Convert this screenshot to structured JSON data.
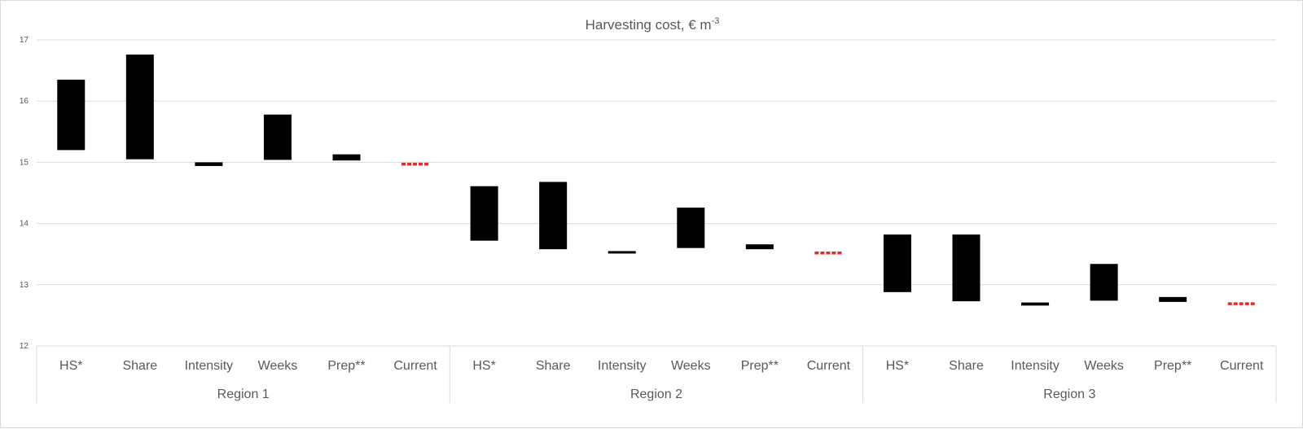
{
  "chart_data": {
    "type": "bar",
    "subtype": "floating-range",
    "title": "Harvesting cost, € m",
    "title_superscript": "-3",
    "ylim": [
      12,
      17
    ],
    "yticks": [
      "12",
      "13",
      "14",
      "15",
      "16",
      "17"
    ],
    "grid": true,
    "legend": "none",
    "colors": {
      "bar": "#000000",
      "current": "#e32b2b",
      "grid": "#d9d9d9",
      "text": "#595959"
    },
    "groups": [
      {
        "name": "Region 1",
        "categories": [
          {
            "label": "HS*",
            "low": 15.2,
            "high": 16.35,
            "style": "bar"
          },
          {
            "label": "Share",
            "low": 15.05,
            "high": 16.76,
            "style": "bar"
          },
          {
            "label": "Intensity",
            "low": 14.94,
            "high": 15.0,
            "style": "bar"
          },
          {
            "label": "Weeks",
            "low": 15.04,
            "high": 15.78,
            "style": "bar"
          },
          {
            "label": "Prep**",
            "low": 15.03,
            "high": 15.13,
            "style": "bar"
          },
          {
            "label": "Current",
            "low": 14.97,
            "high": 14.97,
            "style": "current"
          }
        ]
      },
      {
        "name": "Region 2",
        "categories": [
          {
            "label": "HS*",
            "low": 13.72,
            "high": 14.61,
            "style": "bar"
          },
          {
            "label": "Share",
            "low": 13.58,
            "high": 14.68,
            "style": "bar"
          },
          {
            "label": "Intensity",
            "low": 13.51,
            "high": 13.55,
            "style": "bar"
          },
          {
            "label": "Weeks",
            "low": 13.6,
            "high": 14.26,
            "style": "bar"
          },
          {
            "label": "Prep**",
            "low": 13.58,
            "high": 13.66,
            "style": "bar"
          },
          {
            "label": "Current",
            "low": 13.52,
            "high": 13.52,
            "style": "current"
          }
        ]
      },
      {
        "name": "Region 3",
        "categories": [
          {
            "label": "HS*",
            "low": 12.88,
            "high": 13.82,
            "style": "bar"
          },
          {
            "label": "Share",
            "low": 12.73,
            "high": 13.82,
            "style": "bar"
          },
          {
            "label": "Intensity",
            "low": 12.66,
            "high": 12.71,
            "style": "bar"
          },
          {
            "label": "Weeks",
            "low": 12.74,
            "high": 13.34,
            "style": "bar"
          },
          {
            "label": "Prep**",
            "low": 12.72,
            "high": 12.8,
            "style": "bar"
          },
          {
            "label": "Current",
            "low": 12.69,
            "high": 12.69,
            "style": "current"
          }
        ]
      }
    ]
  }
}
